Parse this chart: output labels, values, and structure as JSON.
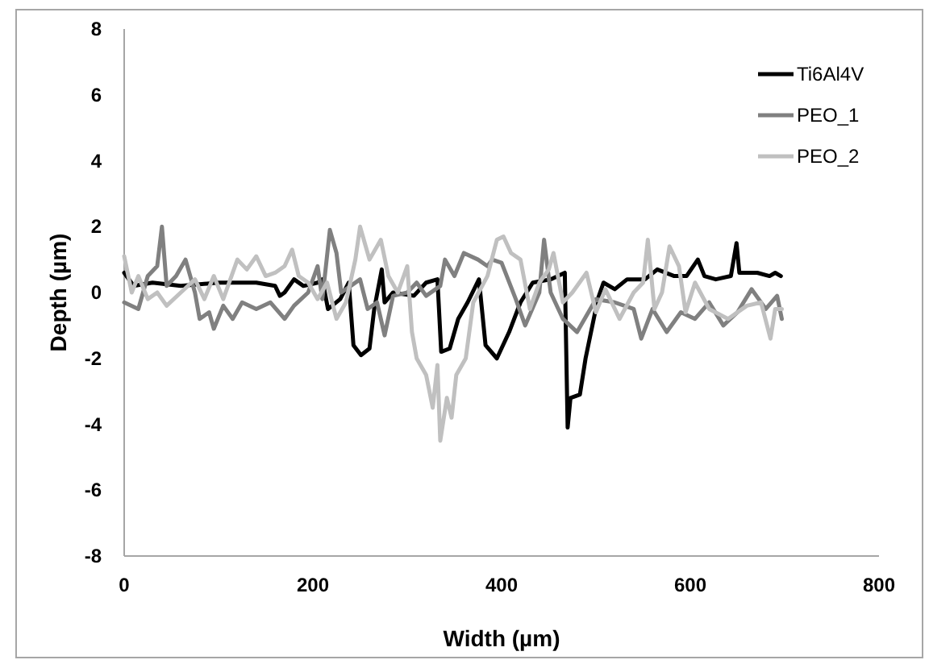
{
  "chart_data": {
    "type": "line",
    "xlabel": "Width (µm)",
    "ylabel": "Depth (µm)",
    "xlim": [
      0,
      800
    ],
    "xticks": [
      0,
      200,
      400,
      600,
      800
    ],
    "ylim": [
      -8,
      8
    ],
    "yticks": [
      -8,
      -6,
      -4,
      -2,
      0,
      2,
      4,
      6,
      8
    ],
    "grid": false,
    "legend": "top right",
    "marker": "none",
    "line_style": "solid",
    "series": [
      {
        "name": "Ti6Al4V",
        "color": "#000000",
        "x": [
          0,
          10,
          30,
          60,
          100,
          140,
          160,
          165,
          170,
          180,
          190,
          205,
          210,
          216,
          229,
          238,
          243,
          251,
          260,
          265,
          273,
          276,
          285,
          307,
          320,
          332,
          336,
          345,
          354,
          364,
          376,
          383,
          395,
          408,
          420,
          433,
          452,
          467,
          470,
          473,
          483,
          489,
          502,
          508,
          520,
          533,
          552,
          565,
          583,
          596,
          608,
          615,
          627,
          643,
          649,
          652,
          671,
          684,
          690,
          696
        ],
        "values": [
          0.6,
          0.2,
          0.3,
          0.2,
          0.3,
          0.3,
          0.2,
          -0.1,
          0,
          0.4,
          0.2,
          0.3,
          0.4,
          -0.5,
          -0.2,
          0.3,
          -1.6,
          -1.9,
          -1.7,
          -0.5,
          0.7,
          -0.3,
          0,
          -0.1,
          0.3,
          0.4,
          -1.8,
          -1.7,
          -0.8,
          -0.3,
          0.4,
          -1.6,
          -2,
          -1.2,
          -0.3,
          0.3,
          0.4,
          0.6,
          -4.1,
          -3.2,
          -3.1,
          -2,
          -0.2,
          0.3,
          0.1,
          0.4,
          0.4,
          0.7,
          0.5,
          0.5,
          1,
          0.5,
          0.4,
          0.5,
          1.5,
          0.6,
          0.6,
          0.5,
          0.6,
          0.5
        ]
      },
      {
        "name": "PEO_1",
        "color": "#808080",
        "x": [
          0,
          15,
          25,
          35,
          40,
          45,
          55,
          65,
          75,
          80,
          90,
          95,
          105,
          115,
          125,
          140,
          155,
          170,
          180,
          195,
          205,
          210,
          218,
          225,
          230,
          240,
          250,
          258,
          268,
          276,
          285,
          300,
          310,
          320,
          335,
          340,
          350,
          360,
          375,
          385,
          390,
          400,
          415,
          425,
          440,
          445,
          452,
          465,
          480,
          500,
          520,
          540,
          548,
          560,
          575,
          590,
          605,
          620,
          635,
          650,
          665,
          680,
          692,
          697
        ],
        "values": [
          -0.3,
          -0.5,
          0.5,
          0.8,
          2,
          0.2,
          0.5,
          1,
          0,
          -0.8,
          -0.6,
          -1.1,
          -0.4,
          -0.8,
          -0.3,
          -0.5,
          -0.3,
          -0.8,
          -0.4,
          0,
          0.8,
          -0.2,
          1.9,
          1.2,
          0,
          0.2,
          0.4,
          -0.5,
          -0.3,
          -1.3,
          -0.1,
          0,
          0.3,
          -0.1,
          0.2,
          1,
          0.5,
          1.2,
          1,
          0.8,
          1,
          0.9,
          -0.2,
          -1,
          0,
          1.6,
          0,
          -0.8,
          -1.2,
          -0.2,
          -0.3,
          -0.5,
          -1.4,
          -0.5,
          -1.2,
          -0.6,
          -0.8,
          -0.3,
          -1,
          -0.6,
          0.1,
          -0.5,
          -0.1,
          -0.8
        ]
      },
      {
        "name": "PEO_2",
        "color": "#c0c0c0",
        "x": [
          0,
          8,
          15,
          25,
          35,
          45,
          60,
          75,
          85,
          95,
          105,
          120,
          130,
          140,
          150,
          160,
          170,
          178,
          185,
          195,
          205,
          215,
          225,
          235,
          245,
          250,
          260,
          272,
          280,
          290,
          300,
          305,
          310,
          320,
          327,
          332,
          335,
          342,
          347,
          352,
          362,
          370,
          385,
          395,
          402,
          410,
          420,
          430,
          440,
          450,
          455,
          465,
          475,
          490,
          500,
          510,
          525,
          540,
          550,
          555,
          562,
          570,
          578,
          588,
          595,
          605,
          620,
          640,
          660,
          675,
          685,
          690,
          697
        ],
        "values": [
          1.1,
          0,
          0.5,
          -0.2,
          0,
          -0.4,
          0,
          0.4,
          -0.2,
          0.5,
          -0.2,
          1,
          0.7,
          1.1,
          0.5,
          0.6,
          0.8,
          1.3,
          0.5,
          0.3,
          -0.2,
          0.3,
          -0.8,
          -0.3,
          1,
          2,
          1,
          1.6,
          0.5,
          0,
          0.8,
          -1.2,
          -2,
          -2.5,
          -3.5,
          -2.2,
          -4.5,
          -3.2,
          -3.8,
          -2.5,
          -2,
          -0.3,
          0.5,
          1.6,
          1.7,
          1.2,
          1,
          -0.5,
          0.3,
          0.7,
          1.2,
          -0.3,
          0,
          0.6,
          -0.6,
          0.1,
          -0.8,
          0,
          0.3,
          1.6,
          -0.5,
          0,
          1.4,
          0.8,
          -0.6,
          0.3,
          -0.5,
          -0.8,
          -0.4,
          -0.3,
          -1.4,
          -0.5,
          -0.5
        ]
      }
    ]
  }
}
